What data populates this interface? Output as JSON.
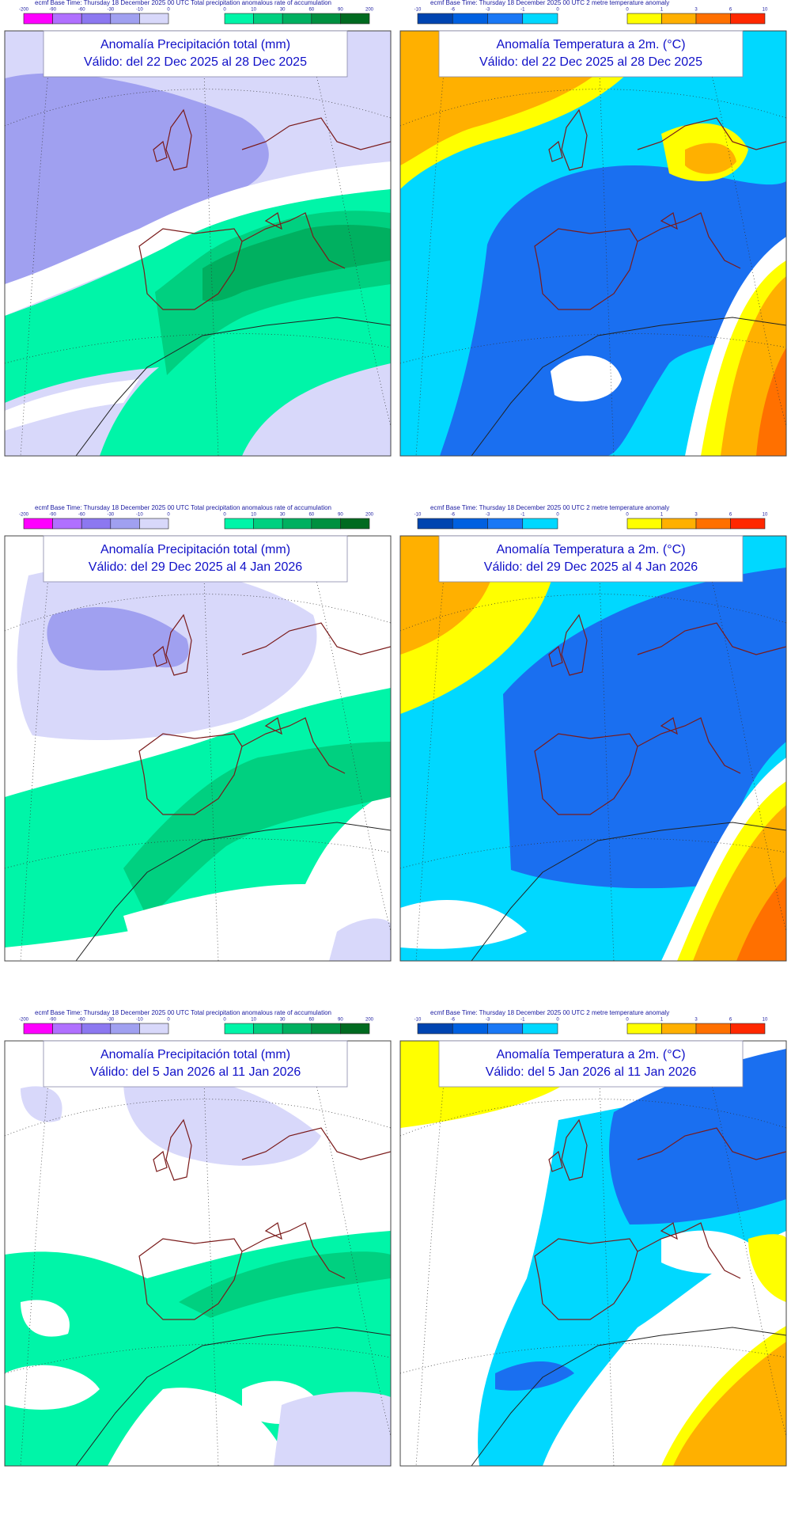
{
  "panels": [
    {
      "header": "ecmf  Base Time: Thursday 18 December 2025 00 UTC Total precipitation anomalous rate of accumulation",
      "legend": {
        "negative": [
          -200,
          -90,
          -60,
          -30,
          -10,
          0
        ],
        "positive": [
          0,
          10,
          30,
          60,
          90,
          200
        ]
      },
      "title": "Anomalía Precipitación total (mm)",
      "valid": "Válido: del 22 Dec 2025 al 28 Dec 2025"
    },
    {
      "header": "ecmf  Base Time: Thursday 18 December 2025 00 UTC 2 metre temperature anomaly",
      "legend": {
        "negative": [
          -10,
          -6,
          -3,
          -1,
          0
        ],
        "positive": [
          0,
          1,
          3,
          6,
          10
        ]
      },
      "title": "Anomalía Temperatura a 2m. (°C)",
      "valid": "Válido: del 22 Dec 2025 al 28 Dec 2025"
    },
    {
      "header": "ecmf  Base Time: Thursday 18 December 2025 00 UTC Total precipitation anomalous rate of accumulation",
      "legend": {
        "negative": [
          -200,
          -90,
          -60,
          -30,
          -10,
          0
        ],
        "positive": [
          0,
          10,
          30,
          60,
          90,
          200
        ]
      },
      "title": "Anomalía Precipitación total (mm)",
      "valid": "Válido: del 29 Dec 2025 al 4 Jan 2026"
    },
    {
      "header": "ecmf  Base Time: Thursday 18 December 2025 00 UTC 2 metre temperature anomaly",
      "legend": {
        "negative": [
          -10,
          -6,
          -3,
          -1,
          0
        ],
        "positive": [
          0,
          1,
          3,
          6,
          10
        ]
      },
      "title": "Anomalía Temperatura a 2m. (°C)",
      "valid": "Válido: del 29 Dec 2025 al 4 Jan 2026"
    },
    {
      "header": "ecmf  Base Time: Thursday 18 December 2025 00 UTC Total precipitation anomalous rate of accumulation",
      "legend": {
        "negative": [
          -200,
          -90,
          -60,
          -30,
          -10,
          0
        ],
        "positive": [
          0,
          10,
          30,
          60,
          90,
          200
        ]
      },
      "title": "Anomalía Precipitación total (mm)",
      "valid": "Válido: del 5 Jan 2026 al 11 Jan 2026"
    },
    {
      "header": "ecmf  Base Time: Thursday 18 December 2025 00 UTC 2 metre temperature anomaly",
      "legend": {
        "negative": [
          -10,
          -6,
          -3,
          -1,
          0
        ],
        "positive": [
          0,
          1,
          3,
          6,
          10
        ]
      },
      "title": "Anomalía Temperatura a 2m. (°C)",
      "valid": "Válido: del 5 Jan 2026 al 11 Jan 2026"
    }
  ]
}
